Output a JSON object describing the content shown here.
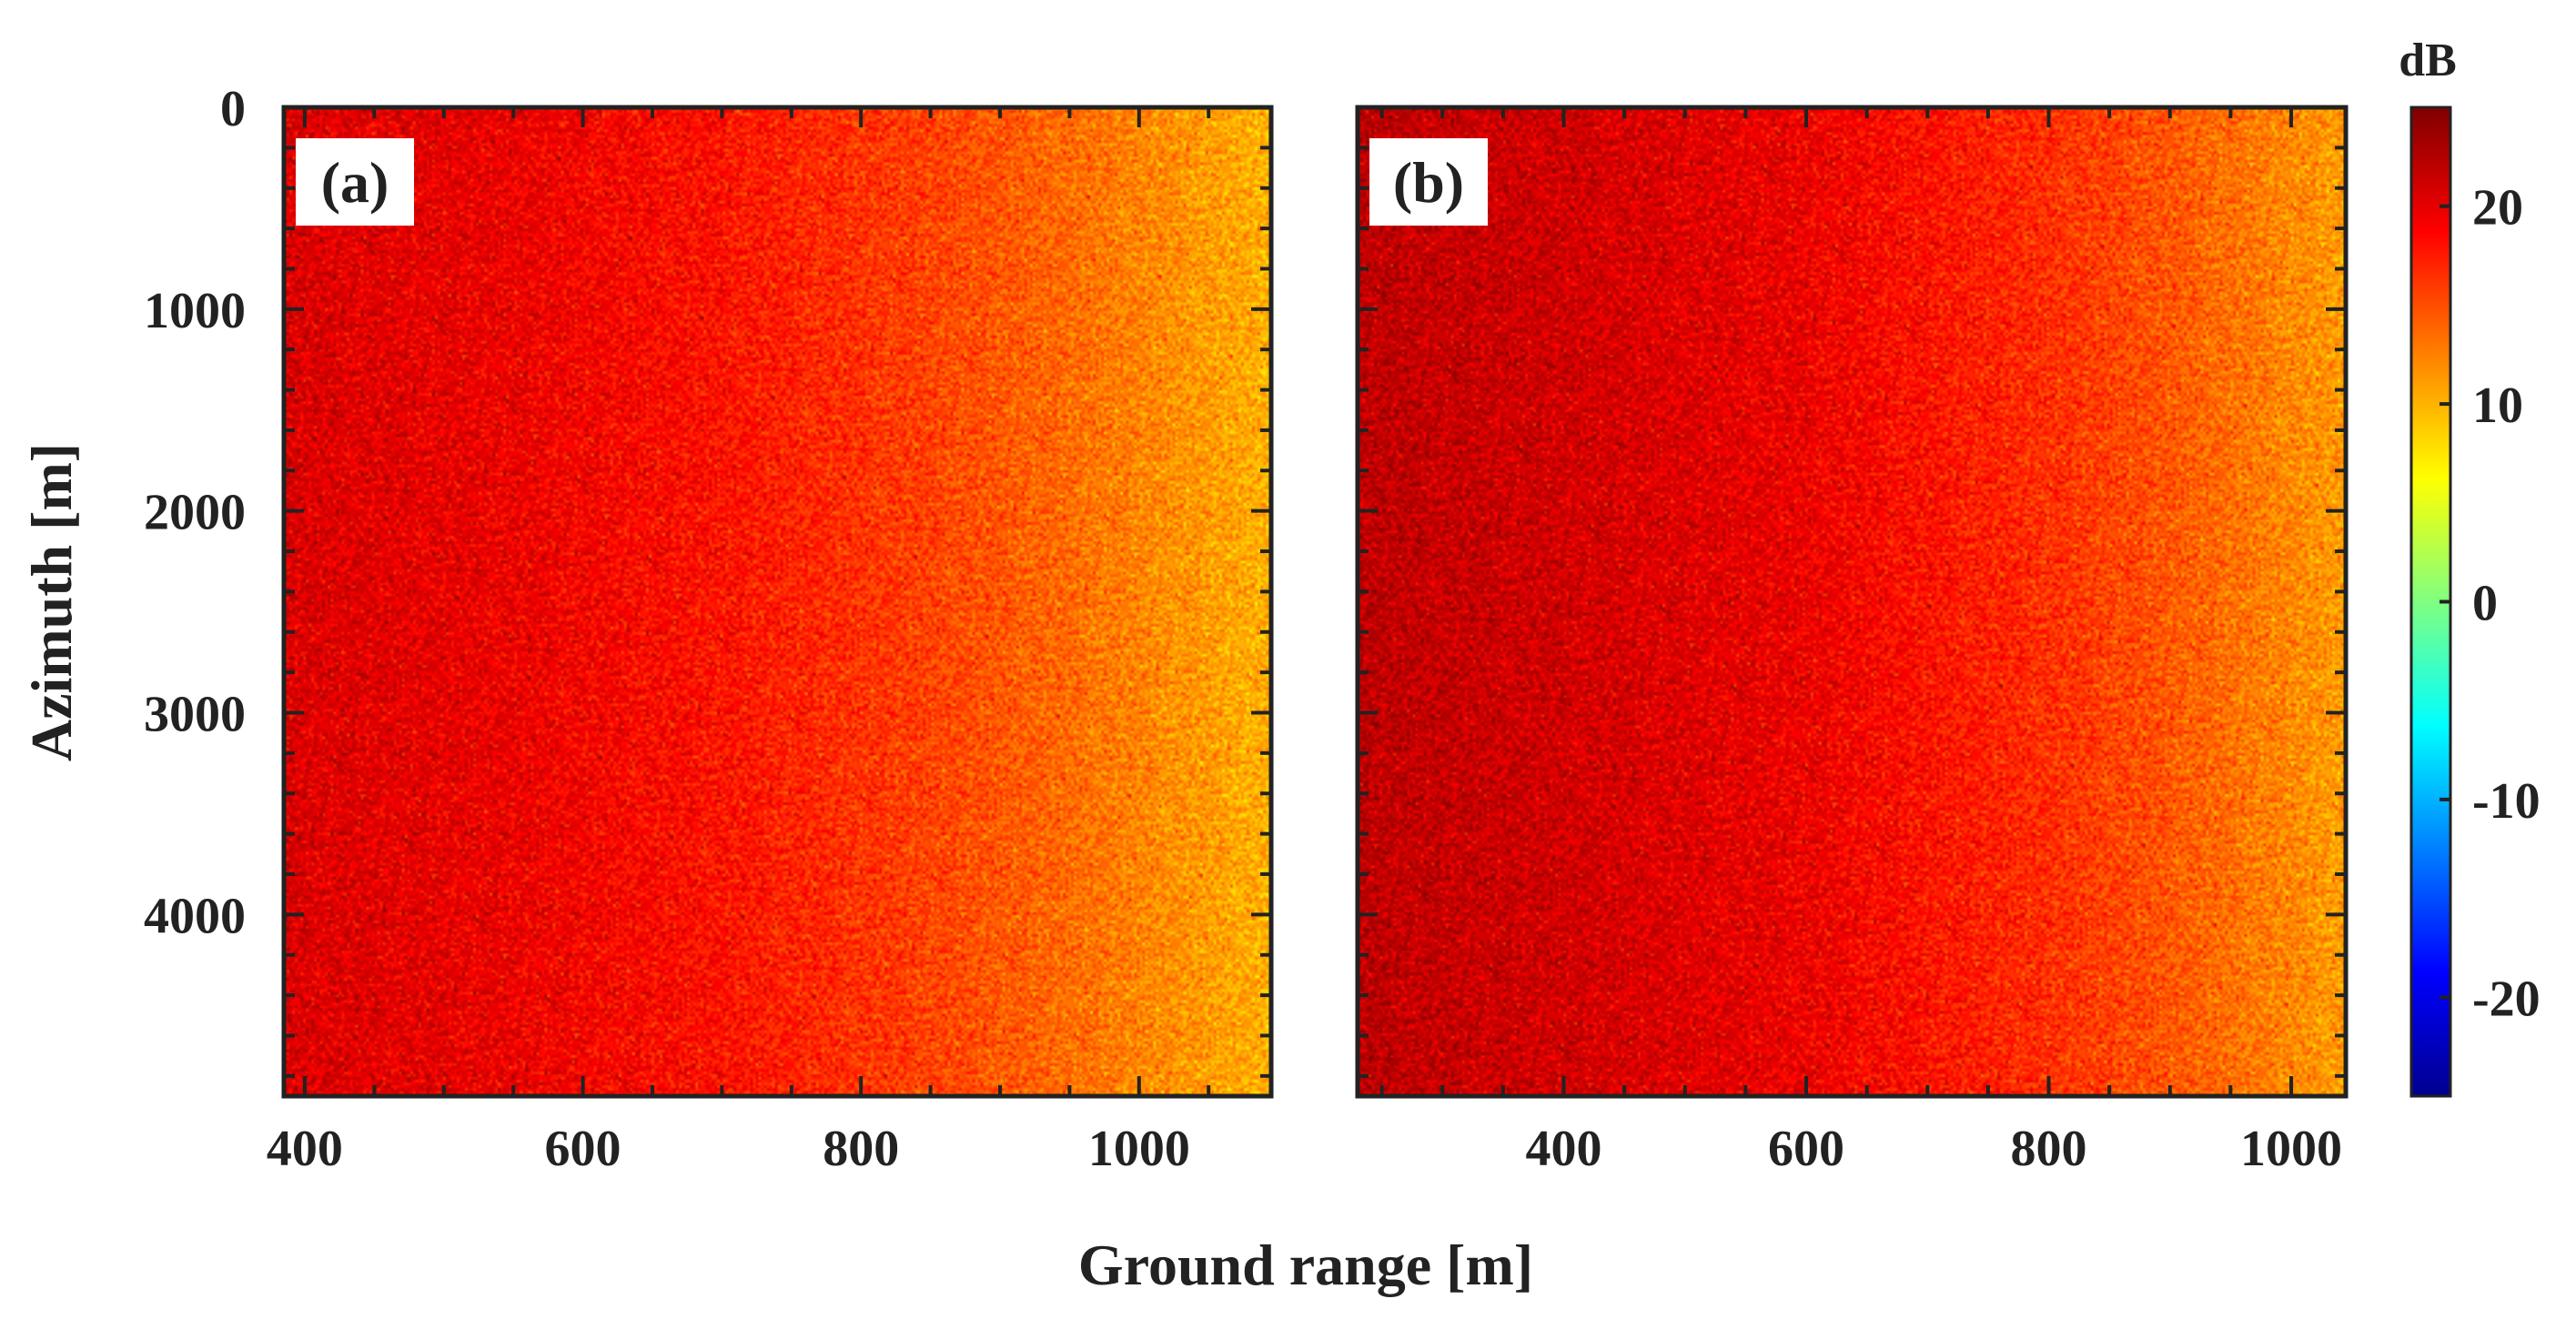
{
  "chart_data": {
    "type": "heatmap",
    "xlabel": "Ground range [m]",
    "ylabel": "Azimuth [m]",
    "colorbar": {
      "title": "dB",
      "range": [
        -25,
        25
      ],
      "ticks": [
        -20,
        -10,
        0,
        10,
        20
      ],
      "tick_labels": [
        "-20",
        "-10",
        "0",
        "10",
        "20"
      ],
      "colormap": [
        "#00008f",
        "#0000ff",
        "#0080ff",
        "#00ffff",
        "#80ff80",
        "#ffff00",
        "#ff8000",
        "#ff0000",
        "#800000"
      ]
    },
    "panels": [
      {
        "label": "(a)",
        "xlim": [
          385,
          1095
        ],
        "ylim": [
          0,
          4900
        ],
        "xticks": [
          400,
          600,
          800,
          1000
        ],
        "xtick_labels": [
          "400",
          "600",
          "800",
          "1000"
        ],
        "yticks": [
          0,
          1000,
          2000,
          3000,
          4000
        ],
        "ytick_labels": [
          "0",
          "1000",
          "2000",
          "3000",
          "4000"
        ],
        "intensity_db_by_range": {
          "x": [
            385,
            550,
            700,
            850,
            950,
            1095
          ],
          "db": [
            20.5,
            19.5,
            18.0,
            15.5,
            13.5,
            10.0
          ]
        },
        "speckle_std_db": 1.6
      },
      {
        "label": "(b)",
        "xlim": [
          230,
          1045
        ],
        "ylim": [
          0,
          4900
        ],
        "xticks": [
          400,
          600,
          800,
          1000
        ],
        "xtick_labels": [
          "400",
          "600",
          "800",
          "1000"
        ],
        "yticks": [
          0,
          1000,
          2000,
          3000,
          4000
        ],
        "ytick_labels": [
          "0",
          "1000",
          "2000",
          "3000",
          "4000"
        ],
        "intensity_db_by_range": {
          "x": [
            230,
            400,
            600,
            800,
            900,
            1045
          ],
          "db": [
            22.0,
            21.0,
            19.5,
            16.5,
            14.5,
            11.0
          ]
        },
        "speckle_std_db": 1.6
      }
    ]
  }
}
